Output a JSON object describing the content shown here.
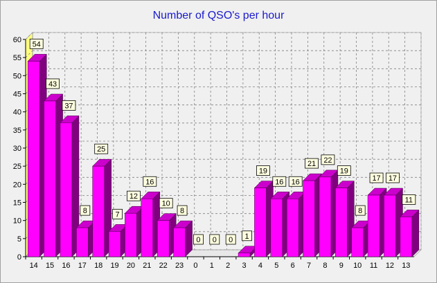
{
  "chart_data": {
    "type": "bar",
    "title": "Number of QSO's per hour",
    "categories": [
      "14",
      "15",
      "16",
      "17",
      "18",
      "19",
      "20",
      "21",
      "22",
      "23",
      "0",
      "1",
      "2",
      "3",
      "4",
      "5",
      "6",
      "7",
      "8",
      "9",
      "10",
      "11",
      "12",
      "13"
    ],
    "values": [
      54,
      43,
      37,
      8,
      25,
      7,
      12,
      16,
      10,
      8,
      0,
      0,
      0,
      1,
      19,
      16,
      16,
      21,
      22,
      19,
      8,
      17,
      17,
      11
    ],
    "xlabel": "",
    "ylabel": "",
    "ylim": [
      0,
      60
    ],
    "yticks": [
      0,
      5,
      10,
      15,
      20,
      25,
      30,
      35,
      40,
      45,
      50,
      55,
      60
    ],
    "grid": true,
    "legend": "none",
    "colors": {
      "bar_front": "#ff00ff",
      "bar_top": "#cc00cc",
      "bar_side": "#800080",
      "left_wall": "#ffff80",
      "label_box": "#ffffe0",
      "title": "#1a1acd"
    }
  }
}
